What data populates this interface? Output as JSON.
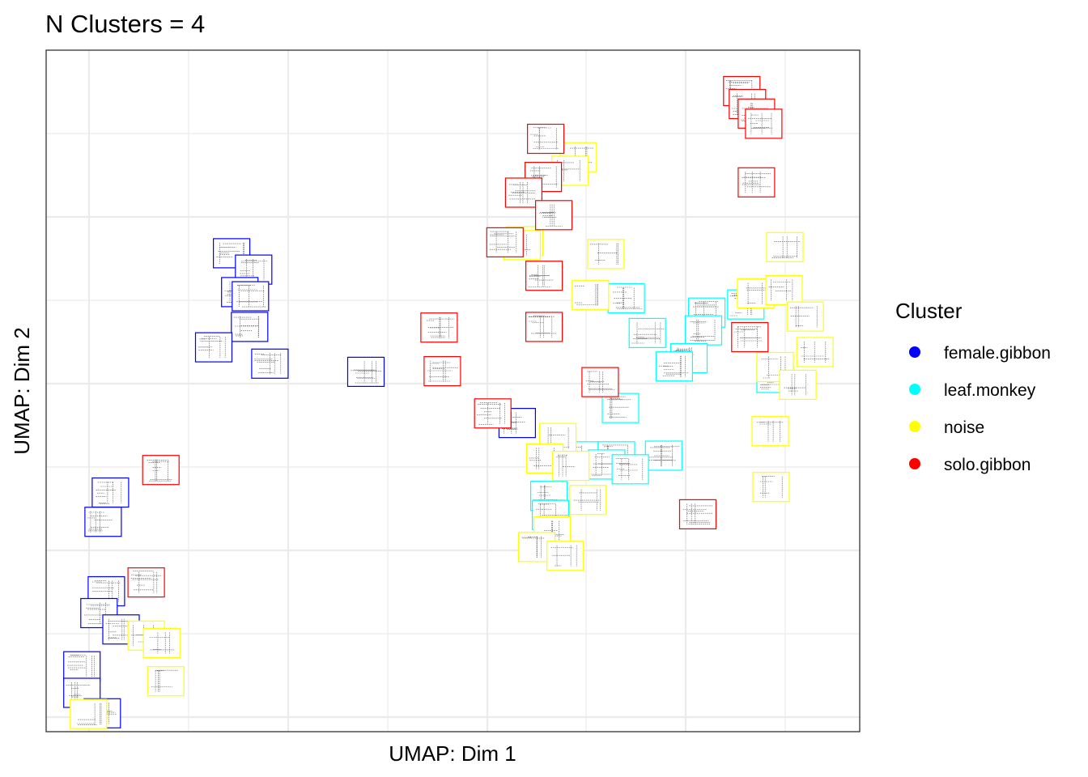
{
  "chart_data": {
    "type": "scatter",
    "title": "N Clusters = 4",
    "xlabel": "UMAP: Dim 1",
    "ylabel": "UMAP: Dim 2",
    "xlim": [
      0,
      100
    ],
    "ylim": [
      0,
      100
    ],
    "grid": true,
    "tick_labels_shown": false,
    "marker": "spectrogram-thumbnail",
    "legend": {
      "title": "Cluster",
      "position": "right",
      "entries": [
        {
          "name": "female.gibbon",
          "color": "#0000FF"
        },
        {
          "name": "leaf.monkey",
          "color": "#00FFFF"
        },
        {
          "name": "noise",
          "color": "#FFFF00"
        },
        {
          "name": "solo.gibbon",
          "color": "#FF0000"
        }
      ]
    },
    "series": [
      {
        "name": "female.gibbon",
        "color": "#0000FF",
        "points": [
          {
            "x": 22.8,
            "y": 70.2
          },
          {
            "x": 25.5,
            "y": 67.8
          },
          {
            "x": 23.8,
            "y": 64.5
          },
          {
            "x": 25.1,
            "y": 63.9
          },
          {
            "x": 25.0,
            "y": 59.4
          },
          {
            "x": 20.6,
            "y": 56.4
          },
          {
            "x": 27.5,
            "y": 54.0
          },
          {
            "x": 39.3,
            "y": 52.8
          },
          {
            "x": 7.9,
            "y": 35.1
          },
          {
            "x": 7.0,
            "y": 30.8
          },
          {
            "x": 7.4,
            "y": 20.6
          },
          {
            "x": 6.5,
            "y": 17.4
          },
          {
            "x": 9.2,
            "y": 15.0
          },
          {
            "x": 4.4,
            "y": 9.6
          },
          {
            "x": 4.4,
            "y": 5.7
          },
          {
            "x": 6.9,
            "y": 2.7
          },
          {
            "x": 57.9,
            "y": 45.3
          }
        ]
      },
      {
        "name": "leaf.monkey",
        "color": "#00FFFF",
        "points": [
          {
            "x": 71.3,
            "y": 63.6
          },
          {
            "x": 81.2,
            "y": 61.5
          },
          {
            "x": 86.0,
            "y": 62.7
          },
          {
            "x": 80.8,
            "y": 58.9
          },
          {
            "x": 73.9,
            "y": 58.5
          },
          {
            "x": 79.0,
            "y": 54.8
          },
          {
            "x": 77.2,
            "y": 53.6
          },
          {
            "x": 89.6,
            "y": 51.9
          },
          {
            "x": 70.6,
            "y": 47.5
          },
          {
            "x": 70.1,
            "y": 40.4
          },
          {
            "x": 65.6,
            "y": 40.4
          },
          {
            "x": 75.9,
            "y": 40.5
          },
          {
            "x": 68.9,
            "y": 39.2
          },
          {
            "x": 71.8,
            "y": 38.5
          },
          {
            "x": 61.8,
            "y": 34.6
          },
          {
            "x": 62.0,
            "y": 31.8
          }
        ]
      },
      {
        "name": "noise",
        "color": "#FFFF00",
        "points": [
          {
            "x": 65.4,
            "y": 84.3
          },
          {
            "x": 64.4,
            "y": 82.3
          },
          {
            "x": 58.8,
            "y": 72.0
          },
          {
            "x": 68.8,
            "y": 70.1
          },
          {
            "x": 58.5,
            "y": 71.4
          },
          {
            "x": 90.8,
            "y": 71.1
          },
          {
            "x": 66.9,
            "y": 64.1
          },
          {
            "x": 87.2,
            "y": 64.3
          },
          {
            "x": 90.7,
            "y": 64.8
          },
          {
            "x": 93.3,
            "y": 60.9
          },
          {
            "x": 94.5,
            "y": 55.7
          },
          {
            "x": 89.6,
            "y": 53.5
          },
          {
            "x": 92.4,
            "y": 50.9
          },
          {
            "x": 62.9,
            "y": 43.1
          },
          {
            "x": 61.3,
            "y": 40.1
          },
          {
            "x": 64.5,
            "y": 39.0
          },
          {
            "x": 66.6,
            "y": 34.0
          },
          {
            "x": 62.2,
            "y": 29.4
          },
          {
            "x": 60.3,
            "y": 27.1
          },
          {
            "x": 63.8,
            "y": 25.8
          },
          {
            "x": 12.3,
            "y": 14.1
          },
          {
            "x": 14.2,
            "y": 13.0
          },
          {
            "x": 14.7,
            "y": 7.4
          },
          {
            "x": 5.2,
            "y": 2.6
          },
          {
            "x": 89.0,
            "y": 44.1
          },
          {
            "x": 89.1,
            "y": 35.9
          }
        ]
      },
      {
        "name": "solo.gibbon",
        "color": "#FF0000",
        "points": [
          {
            "x": 85.5,
            "y": 94.0
          },
          {
            "x": 86.2,
            "y": 92.1
          },
          {
            "x": 87.3,
            "y": 90.7
          },
          {
            "x": 88.2,
            "y": 89.2
          },
          {
            "x": 61.4,
            "y": 87.0
          },
          {
            "x": 61.1,
            "y": 81.4
          },
          {
            "x": 58.7,
            "y": 79.1
          },
          {
            "x": 62.4,
            "y": 75.8
          },
          {
            "x": 87.3,
            "y": 80.6
          },
          {
            "x": 56.4,
            "y": 71.8
          },
          {
            "x": 61.2,
            "y": 66.9
          },
          {
            "x": 61.2,
            "y": 59.4
          },
          {
            "x": 48.3,
            "y": 59.3
          },
          {
            "x": 86.5,
            "y": 57.9
          },
          {
            "x": 48.7,
            "y": 52.9
          },
          {
            "x": 68.1,
            "y": 51.3
          },
          {
            "x": 54.9,
            "y": 46.7
          },
          {
            "x": 80.1,
            "y": 31.9
          },
          {
            "x": 14.1,
            "y": 38.4
          },
          {
            "x": 12.3,
            "y": 21.9
          }
        ]
      }
    ]
  }
}
